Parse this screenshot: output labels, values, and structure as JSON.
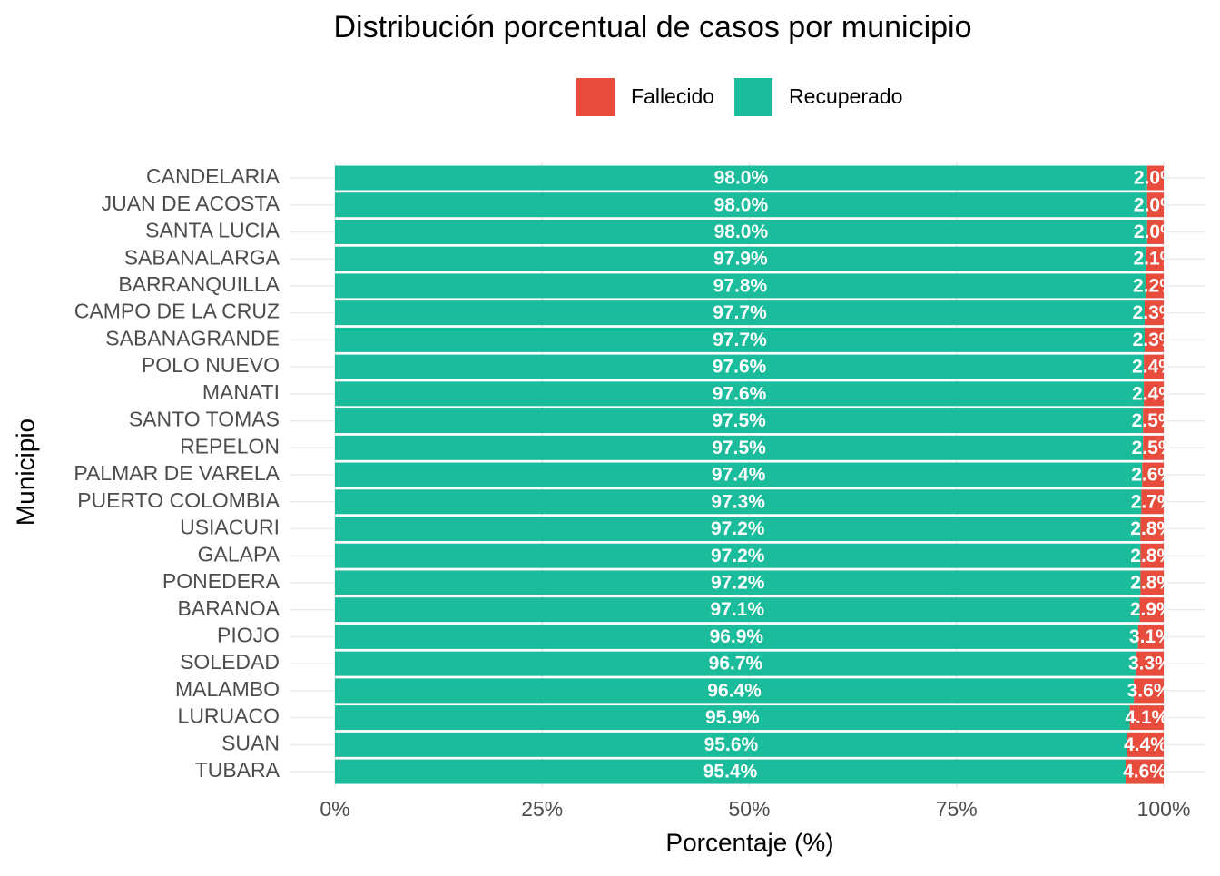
{
  "chart_data": {
    "type": "bar",
    "orientation": "horizontal",
    "stacked": true,
    "title": "Distribución porcentual de casos por municipio",
    "x_label": "Porcentaje (%)",
    "y_label": "Municipio",
    "categories": [
      "CANDELARIA",
      "JUAN DE ACOSTA",
      "SANTA LUCIA",
      "SABANALARGA",
      "BARRANQUILLA",
      "CAMPO DE LA CRUZ",
      "SABANAGRANDE",
      "POLO NUEVO",
      "MANATI",
      "SANTO TOMAS",
      "REPELON",
      "PALMAR DE VARELA",
      "PUERTO COLOMBIA",
      "USIACURI",
      "GALAPA",
      "PONEDERA",
      "BARANOA",
      "PIOJO",
      "SOLEDAD",
      "MALAMBO",
      "LURUACO",
      "SUAN",
      "TUBARA"
    ],
    "series": [
      {
        "name": "Fallecido",
        "color": "#E74C3C",
        "values": [
          2.0,
          2.0,
          2.0,
          2.1,
          2.2,
          2.3,
          2.3,
          2.4,
          2.4,
          2.5,
          2.5,
          2.6,
          2.7,
          2.8,
          2.8,
          2.8,
          2.9,
          3.1,
          3.3,
          3.6,
          4.1,
          4.4,
          4.6
        ],
        "value_labels": [
          "2.0%",
          "2.0%",
          "2.0%",
          "2.1%",
          "2.2%",
          "2.3%",
          "2.3%",
          "2.4%",
          "2.4%",
          "2.5%",
          "2.5%",
          "2.6%",
          "2.7%",
          "2.8%",
          "2.8%",
          "2.8%",
          "2.9%",
          "3.1%",
          "3.3%",
          "3.6%",
          "4.1%",
          "4.4%",
          "4.6%"
        ]
      },
      {
        "name": "Recuperado",
        "color": "#1ABC9C",
        "values": [
          98.0,
          98.0,
          98.0,
          97.9,
          97.8,
          97.7,
          97.7,
          97.6,
          97.6,
          97.5,
          97.5,
          97.4,
          97.3,
          97.2,
          97.2,
          97.2,
          97.1,
          96.9,
          96.7,
          96.4,
          95.9,
          95.6,
          95.4
        ],
        "value_labels": [
          "98.0%",
          "98.0%",
          "98.0%",
          "97.9%",
          "97.8%",
          "97.7%",
          "97.7%",
          "97.6%",
          "97.6%",
          "97.5%",
          "97.5%",
          "97.4%",
          "97.3%",
          "97.2%",
          "97.2%",
          "97.2%",
          "97.1%",
          "96.9%",
          "96.7%",
          "96.4%",
          "95.9%",
          "95.6%",
          "95.4%"
        ]
      }
    ],
    "xlim": [
      0,
      100
    ],
    "xticks": [
      {
        "value": 0,
        "label": "0%"
      },
      {
        "value": 25,
        "label": "25%"
      },
      {
        "value": 50,
        "label": "50%"
      },
      {
        "value": 75,
        "label": "75%"
      },
      {
        "value": 100,
        "label": "100%"
      }
    ],
    "grid": true,
    "legend": "top"
  }
}
